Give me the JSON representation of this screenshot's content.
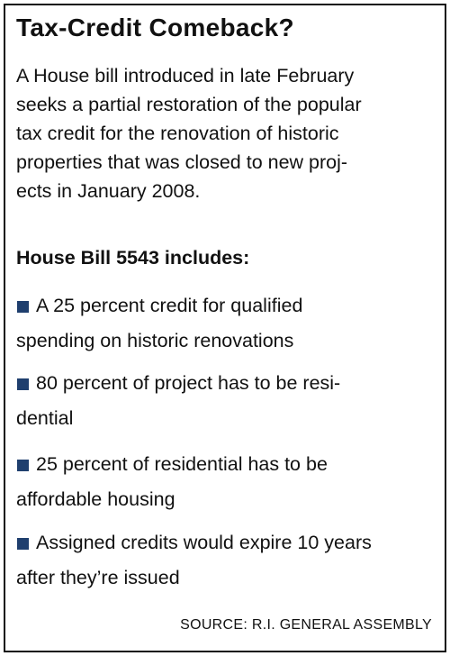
{
  "title": "Tax-Credit Comeback?",
  "intro": {
    "lines": [
      "A House bill introduced in late February",
      "seeks a partial restoration of the popular",
      "tax credit for the renovation of historic",
      "properties that was closed to new proj-",
      "ects in January 2008."
    ]
  },
  "subheading": "House Bill 5543 includes:",
  "bullets": [
    {
      "lines": [
        "A 25 percent credit for qualified",
        "spending on historic renovations"
      ]
    },
    {
      "lines": [
        "80 percent of project has to be resi-",
        "dential"
      ]
    },
    {
      "lines": [
        "25 percent of residential has to be",
        "affordable housing"
      ]
    },
    {
      "lines": [
        "Assigned credits would expire 10 years",
        "after they’re issued"
      ]
    }
  ],
  "source": "SOURCE: R.I. GENERAL ASSEMBLY"
}
